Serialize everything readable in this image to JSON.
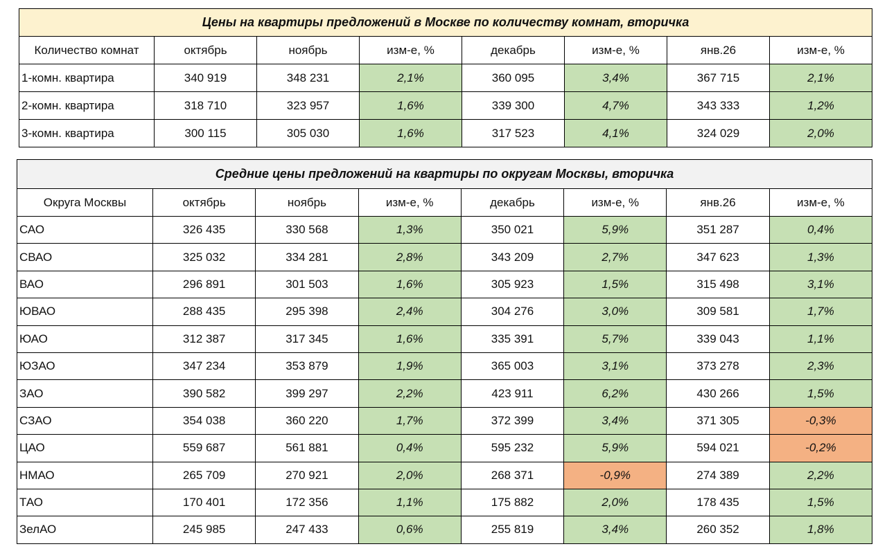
{
  "tables": [
    {
      "title": "Цены на квартиры предложений в Москве по количеству комнат, вторичка",
      "header": [
        "Количество комнат",
        "октябрь",
        "ноябрь",
        "изм-е, %",
        "декабрь",
        "изм-е, %",
        "янв.26",
        "изм-е, %"
      ],
      "rows": [
        [
          "1-комн. квартира",
          "340 919",
          "348 231",
          "2,1%",
          "360 095",
          "3,4%",
          "367 715",
          "2,1%"
        ],
        [
          "2-комн. квартира",
          "318 710",
          "323 957",
          "1,6%",
          "339 300",
          "4,7%",
          "343 333",
          "1,2%"
        ],
        [
          "3-комн. квартира",
          "300 115",
          "305 030",
          "1,6%",
          "317 523",
          "4,1%",
          "324 029",
          "2,0%"
        ]
      ]
    },
    {
      "title": "Средние цены предложений на  квартиры по округам Москвы, вторичка",
      "header": [
        "Округа Москвы",
        "октябрь",
        "ноябрь",
        "изм-е, %",
        "декабрь",
        "изм-е, %",
        "янв.26",
        "изм-е, %"
      ],
      "rows": [
        [
          "САО",
          "326 435",
          "330 568",
          "1,3%",
          "350 021",
          "5,9%",
          "351 287",
          "0,4%"
        ],
        [
          "СВАО",
          "325 032",
          "334 281",
          "2,8%",
          "343 209",
          "2,7%",
          "347 623",
          "1,3%"
        ],
        [
          "ВАО",
          "296 891",
          "301 503",
          "1,6%",
          "305 923",
          "1,5%",
          "315 498",
          "3,1%"
        ],
        [
          "ЮВАО",
          "288 435",
          "295 398",
          "2,4%",
          "304 276",
          "3,0%",
          "309 581",
          "1,7%"
        ],
        [
          "ЮАО",
          "312 387",
          "317 345",
          "1,6%",
          "335 391",
          "5,7%",
          "339 043",
          "1,1%"
        ],
        [
          "ЮЗАО",
          "347 234",
          "353 879",
          "1,9%",
          "365 003",
          "3,1%",
          "373 278",
          "2,3%"
        ],
        [
          "ЗАО",
          "390 582",
          "399 297",
          "2,2%",
          "423 911",
          "6,2%",
          "430 266",
          "1,5%"
        ],
        [
          "СЗАО",
          "354 038",
          "360 220",
          "1,7%",
          "372 399",
          "3,4%",
          "371 305",
          "-0,3%"
        ],
        [
          "ЦАО",
          "559 687",
          "561 881",
          "0,4%",
          "595 232",
          "5,9%",
          "594 021",
          "-0,2%"
        ],
        [
          "НМАО",
          "265 709",
          "270 921",
          "2,0%",
          "268 371",
          "-0,9%",
          "274 389",
          "2,2%"
        ],
        [
          "ТАО",
          "170 401",
          "172 356",
          "1,1%",
          "175 882",
          "2,0%",
          "178 435",
          "1,5%"
        ],
        [
          "ЗелАО",
          "245 985",
          "247 433",
          "0,6%",
          "255 819",
          "3,4%",
          "260 352",
          "1,8%"
        ]
      ]
    }
  ]
}
